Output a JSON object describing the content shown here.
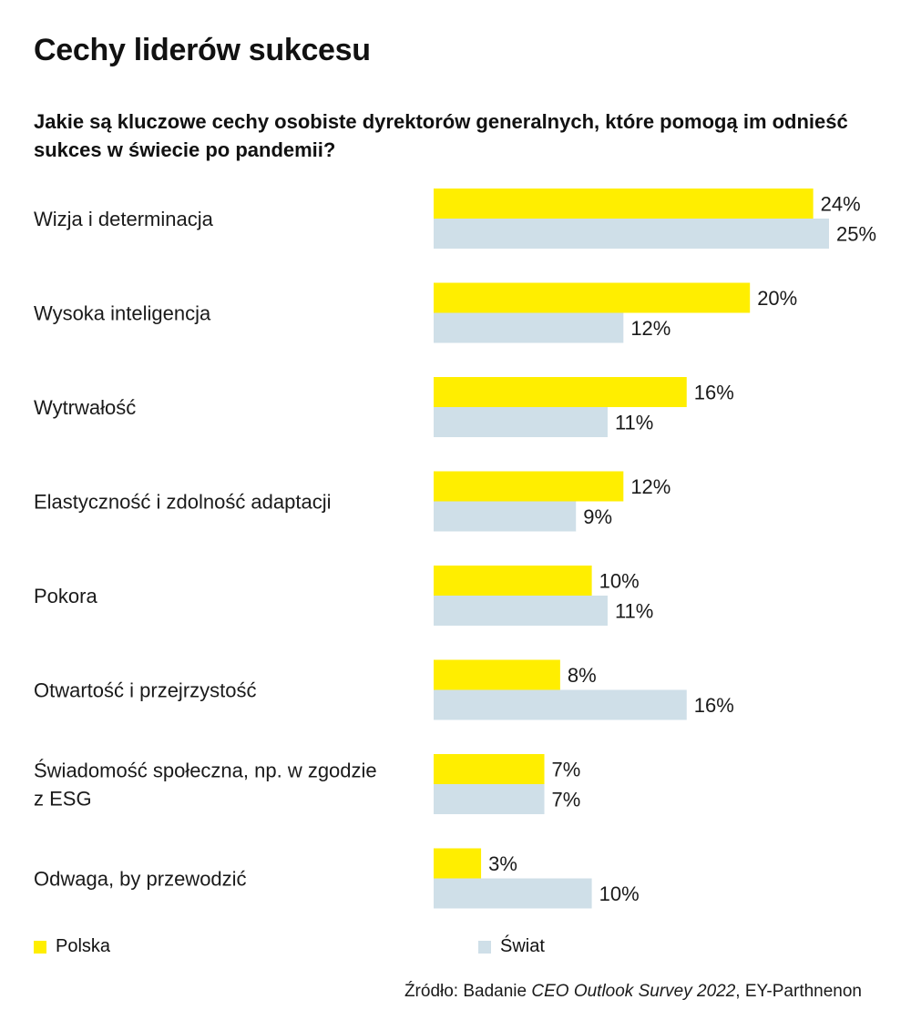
{
  "chart_data": {
    "type": "bar",
    "orientation": "horizontal",
    "title": "Cechy liderów sukcesu",
    "subtitle": "Jakie są kluczowe cechy osobiste dyrektorów generalnych, które pomogą im odnieść sukces w świecie po pandemii?",
    "categories": [
      [
        "Wizja i determinacja"
      ],
      [
        "Wysoka inteligencja"
      ],
      [
        "Wytrwałość"
      ],
      [
        "Elastyczność i zdolność adaptacji"
      ],
      [
        "Pokora"
      ],
      [
        "Otwartość i przejrzystość"
      ],
      [
        "Świadomość społeczna, np. w zgodzie",
        "z ESG"
      ],
      [
        "Odwaga, by przewodzić"
      ]
    ],
    "series": [
      {
        "name": "Polska",
        "color": "#ffee00",
        "values": [
          24,
          20,
          16,
          12,
          10,
          8,
          7,
          3
        ]
      },
      {
        "name": "Świat",
        "color": "#cfdfe8",
        "values": [
          25,
          12,
          11,
          9,
          11,
          16,
          7,
          10
        ]
      }
    ],
    "value_suffix": "%",
    "xlim": [
      0,
      25
    ],
    "grid": false,
    "legend_position": "bottom"
  },
  "source": {
    "prefix": "Źródło: Badanie ",
    "italic": "CEO Outlook Survey 2022",
    "suffix": ", EY-Parthnenon"
  }
}
